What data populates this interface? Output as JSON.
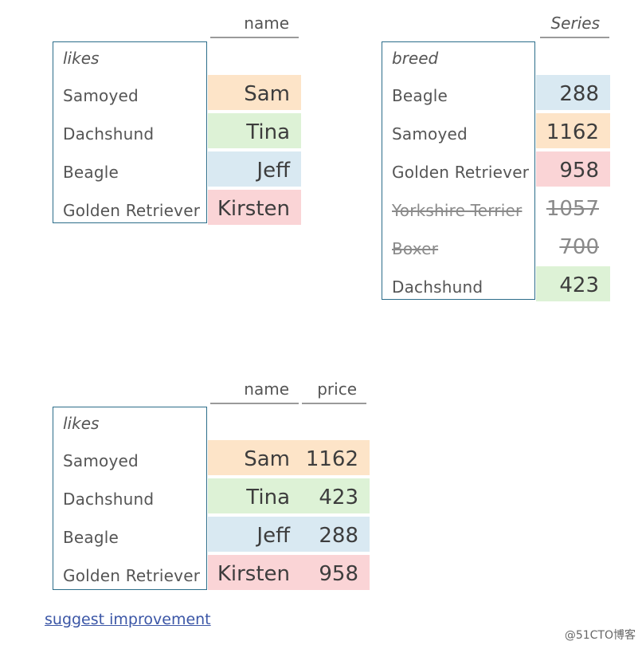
{
  "colors": {
    "peach": "#fde4c8",
    "green": "#ddf2d6",
    "blue": "#d9e9f2",
    "pink": "#fad4d6",
    "border": "#2c6d8a",
    "link": "#3b56a6"
  },
  "diagram1": {
    "column_header": "name",
    "index_title": "likes",
    "rows": [
      {
        "index": "Samoyed",
        "name": "Sam",
        "color": "#fde4c8"
      },
      {
        "index": "Dachshund",
        "name": "Tina",
        "color": "#ddf2d6"
      },
      {
        "index": "Beagle",
        "name": "Jeff",
        "color": "#d9e9f2"
      },
      {
        "index": "Golden Retriever",
        "name": "Kirsten",
        "color": "#fad4d6"
      }
    ]
  },
  "diagram2": {
    "column_header": "Series",
    "index_title": "breed",
    "rows": [
      {
        "index": "Beagle",
        "value": "288",
        "color": "#d9e9f2",
        "struck": false
      },
      {
        "index": "Samoyed",
        "value": "1162",
        "color": "#fde4c8",
        "struck": false
      },
      {
        "index": "Golden Retriever",
        "value": "958",
        "color": "#fad4d6",
        "struck": false
      },
      {
        "index": "Yorkshire Terrier",
        "value": "1057",
        "color": "",
        "struck": true
      },
      {
        "index": "Boxer",
        "value": "700",
        "color": "",
        "struck": true
      },
      {
        "index": "Dachshund",
        "value": "423",
        "color": "#ddf2d6",
        "struck": false
      }
    ]
  },
  "diagram3": {
    "column_headers": [
      "name",
      "price"
    ],
    "index_title": "likes",
    "rows": [
      {
        "index": "Samoyed",
        "name": "Sam",
        "price": "1162",
        "color": "#fde4c8"
      },
      {
        "index": "Dachshund",
        "name": "Tina",
        "price": "423",
        "color": "#ddf2d6"
      },
      {
        "index": "Beagle",
        "name": "Jeff",
        "price": "288",
        "color": "#d9e9f2"
      },
      {
        "index": "Golden Retriever",
        "name": "Kirsten",
        "price": "958",
        "color": "#fad4d6"
      }
    ]
  },
  "footer": {
    "link_text": "suggest improvement",
    "watermark": "@51CTO博客"
  }
}
